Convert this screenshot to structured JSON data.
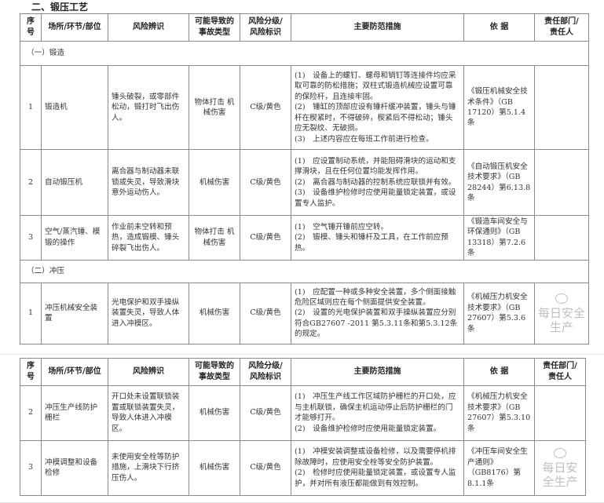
{
  "section_title": "二、锻压工艺",
  "headers": [
    "序号",
    "场所/环节/部位",
    "风险辨识",
    "可能导致的事故类型",
    "风险分级/风险标识",
    "主要防范措施",
    "依 据",
    "责任部门/责任人"
  ],
  "header_lines": [
    [
      "序",
      "号"
    ],
    [
      "场所/环节/部位"
    ],
    [
      "风险辨识"
    ],
    [
      "可能导致的",
      "事故类型"
    ],
    [
      "风险分级/",
      "风险标识"
    ],
    [
      "主要防范措施"
    ],
    [
      "依 据"
    ],
    [
      "责任部门/",
      "责任人"
    ]
  ],
  "table1": {
    "groups": [
      {
        "title": "（一）锻造",
        "rows": [
          {
            "no": "1",
            "place": "锻造机",
            "risk": "锤头破裂，或零部件松动，锻打时飞出伤人。",
            "accident": "物体打击 机械伤害",
            "level": "C级/黄色",
            "measures": [
              "(1)　设备上的螺钉、螺母和销钉等连接件均应采取可靠的防松措施；双柱式锻造机械应设置可靠的保险杆，且连接牢固。",
              "(2)　锤缸的顶部应设有锤杆缓冲装置，锤头与锤杆在楔紧时，不得破碎，楔紧后不得松动；锤头应无裂纹、无破损。",
              "(3)　上述内容应在每班工作前进行检查。"
            ],
            "basis": "《锻压机械安全技术条件》（GB 17120）第5.1.4条",
            "owner": ""
          },
          {
            "no": "2",
            "place": "自动锻压机",
            "risk": "离合器与制动器未联锁或失灵，导致滑块意外运动伤人。",
            "accident": "机械伤害",
            "level": "C级/黄色",
            "measures": [
              "(1)　应设置制动系统，并能阻碍滑块的运动和支撑滑块，且在任何位置均能发挥作用。",
              "(2)　离合器与制动器的控制系统应联锁并有效。",
              "(3)　设备维护检修时应使用能量锁定装置，或设置专人监护。"
            ],
            "basis": "《自动锻压机安全技术要求》（GB 28244）第6.13.8条",
            "owner": ""
          },
          {
            "no": "3",
            "place": "空气/蒸汽锤、模锻的操作",
            "risk": "作业前未空转和预热，造成锻模、锤头碎裂飞出伤人。",
            "accident": "物体打击 机械伤害",
            "level": "C级/黄色",
            "measures": [
              "(1)　空气锤开锤前应空转。",
              "(2)　锻模、锤头和锤杆及工具，在工作前应预热。"
            ],
            "basis": "《锻造车间安全与环保通则》（GB 13318）第7.2.6条",
            "owner": ""
          }
        ]
      },
      {
        "title": "（二）冲压",
        "rows": [
          {
            "no": "1",
            "place": "冲压机械安全装置",
            "risk": "光电保护和双手操纵装置失灵，导致人体进入冲模区。",
            "accident": "机械伤害",
            "level": "C级/黄色",
            "measures": [
              "(1)　应配置一种或多种安全装置，多个侧面接触危险区域则应在每个侧面提供安全装置。",
              "(2)　设置的光电保护装置和双手操纵装置应分别符合GB27607 -2011 第5.3.11条和第5.3.12条的规定。"
            ],
            "basis": "《机械压力机安全技术要求》（GB 27607）第5.3.6条",
            "owner": ""
          }
        ]
      }
    ]
  },
  "table2": {
    "rows": [
      {
        "no": "2",
        "place": "冲压生产线防护栅栏",
        "risk": "开口处未设置联锁装置或联锁装置失灵，导致人体进入冲模区。",
        "accident": "机械伤害",
        "level": "C级/黄色",
        "measures": [
          "(1)　冲压生产线工作区域防护栅栏的开口处，应与主机联锁，确保主机运动停止后防护栅栏的门才能够打开。",
          "(2)　设备维护检修时应使用能量锁定装置。"
        ],
        "basis": "《机械压力机安全技术要求》（GB 27607）第5.3.10条",
        "owner": ""
      },
      {
        "no": "3",
        "place": "冲模调整和设备检修",
        "risk": "未使用安全栓等防护措施，上滑块下行挤压伤人。",
        "accident": "机械伤害",
        "level": "C级/黄色",
        "measures": [
          "(1)　冲模安装调整或设备检修，以及需要停机排除故障时，应使用安全栓等安全防护装置。",
          "(2)　检修时应使用能量锁定装置，或设置专人监护，并对所有液压都能做到有效控制。"
        ],
        "basis": "《冲压车间安全生产通则》（GB8176）第8.1.1条",
        "owner": ""
      }
    ]
  },
  "watermark": "每日安全生产"
}
